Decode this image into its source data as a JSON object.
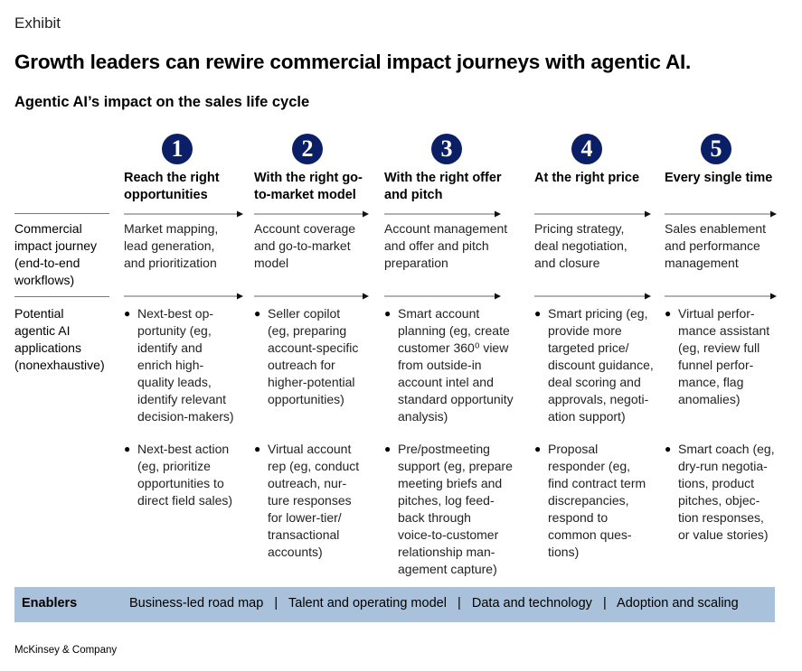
{
  "exhibit": "Exhibit",
  "title": "Growth leaders can rewire commercial impact journeys with agentic AI.",
  "subtitle": "Agentic AI’s impact on the sales life cycle",
  "columns": [
    {
      "number": "1",
      "heading_lines": [
        "Reach the right",
        "opportunities"
      ],
      "journey_lines": [
        "Market mapping,",
        "lead generation,",
        "and prioritization"
      ],
      "apps": [
        [
          "Next-best op-",
          "portunity (eg,",
          "identify and",
          "enrich high-",
          "quality leads,",
          "identify relevant",
          "decision-makers)"
        ],
        [
          "Next-best action",
          "(eg, prioritize",
          "opportunities to",
          "direct field sales)"
        ]
      ]
    },
    {
      "number": "2",
      "heading_lines": [
        "With the right go-",
        "to-market model"
      ],
      "journey_lines": [
        "Account coverage",
        "and go-to-market",
        "model"
      ],
      "apps": [
        [
          "Seller copilot",
          "(eg, preparing",
          "account-specific",
          "outreach for",
          "higher-potential",
          "opportunities)"
        ],
        [
          "Virtual account",
          "rep (eg, conduct",
          "outreach, nur-",
          "ture responses",
          "for lower-tier/",
          "transactional",
          "accounts)"
        ]
      ]
    },
    {
      "number": "3",
      "heading_lines": [
        "With the right offer",
        "and pitch"
      ],
      "journey_lines": [
        "Account management",
        "and offer and pitch",
        "preparation"
      ],
      "apps": [
        [
          "Smart account",
          "planning (eg, create",
          "customer 360⁰ view",
          "from outside-in",
          "account intel and",
          "standard opportunity",
          "analysis)"
        ],
        [
          "Pre/postmeeting",
          "support (eg, prepare",
          "meeting briefs and",
          "pitches, log feed-",
          "back through",
          "voice-to-customer",
          "relationship man-",
          "agement capture)"
        ]
      ]
    },
    {
      "number": "4",
      "heading_lines": [
        "At the right price"
      ],
      "journey_lines": [
        "Pricing strategy,",
        "deal negotiation,",
        "and closure"
      ],
      "apps": [
        [
          "Smart pricing (eg,",
          "provide more",
          "targeted price/",
          "discount guidance,",
          "deal scoring and",
          "approvals, negoti-",
          "ation support)"
        ],
        [
          "Proposal",
          "responder (eg,",
          "find contract term",
          "discrepancies,",
          "respond to",
          "common ques-",
          "tions)"
        ]
      ]
    },
    {
      "number": "5",
      "heading_lines": [
        "Every single time"
      ],
      "journey_lines": [
        "Sales enablement",
        "and performance",
        "management"
      ],
      "apps": [
        [
          "Virtual perfor-",
          "mance assistant",
          "(eg, review full",
          "funnel perfor-",
          "mance, flag",
          "anomalies)"
        ],
        [
          "Smart coach (eg,",
          "dry-run negotia-",
          "tions, product",
          "pitches, objec-",
          "tion responses,",
          "or value stories)"
        ]
      ]
    }
  ],
  "row_labels": {
    "journey": [
      "Commercial",
      "impact journey",
      "(end-to-end",
      "workflows)"
    ],
    "applications": [
      "Potential",
      "agentic AI",
      "applications",
      "(nonexhaustive)"
    ]
  },
  "enablers": {
    "label": "Enablers",
    "items": [
      "Business-led road map",
      "Talent and operating model",
      "Data and technology",
      "Adoption and scaling"
    ]
  },
  "footer": "McKinsey & Company",
  "colors": {
    "number_circle": "#0b1f66",
    "enablers_bar": "#a9c1da",
    "rule": "#777777"
  }
}
